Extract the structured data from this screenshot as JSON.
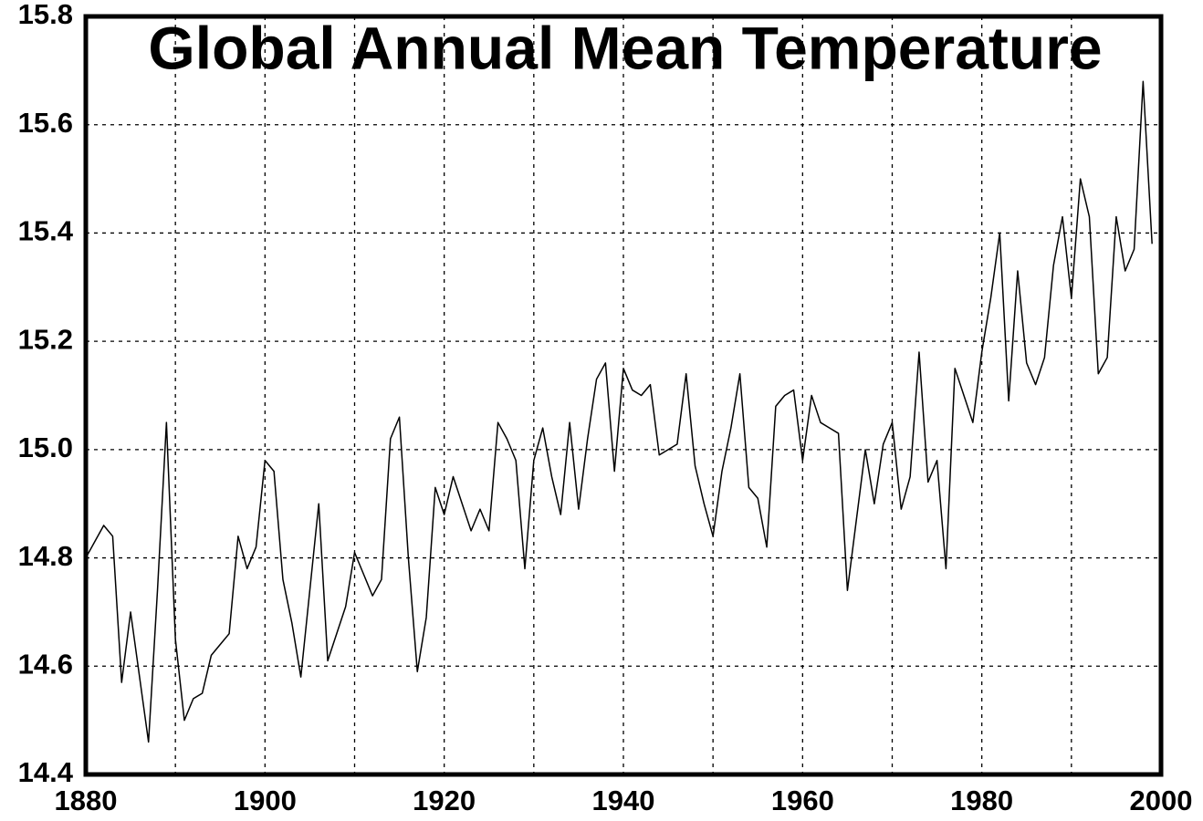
{
  "chart_data": {
    "type": "line",
    "title": "Global Annual Mean Temperature",
    "x": [
      1880,
      1881,
      1882,
      1883,
      1884,
      1885,
      1886,
      1887,
      1888,
      1889,
      1890,
      1891,
      1892,
      1893,
      1894,
      1895,
      1896,
      1897,
      1898,
      1899,
      1900,
      1901,
      1902,
      1903,
      1904,
      1905,
      1906,
      1907,
      1908,
      1909,
      1910,
      1911,
      1912,
      1913,
      1914,
      1915,
      1916,
      1917,
      1918,
      1919,
      1920,
      1921,
      1922,
      1923,
      1924,
      1925,
      1926,
      1927,
      1928,
      1929,
      1930,
      1931,
      1932,
      1933,
      1934,
      1935,
      1936,
      1937,
      1938,
      1939,
      1940,
      1941,
      1942,
      1943,
      1944,
      1945,
      1946,
      1947,
      1948,
      1949,
      1950,
      1951,
      1952,
      1953,
      1954,
      1955,
      1956,
      1957,
      1958,
      1959,
      1960,
      1961,
      1962,
      1963,
      1964,
      1965,
      1966,
      1967,
      1968,
      1969,
      1970,
      1971,
      1972,
      1973,
      1974,
      1975,
      1976,
      1977,
      1978,
      1979,
      1980,
      1981,
      1982,
      1983,
      1984,
      1985,
      1986,
      1987,
      1988,
      1989,
      1990,
      1991,
      1992,
      1993,
      1994,
      1995,
      1996,
      1997,
      1998,
      1999
    ],
    "values": [
      14.8,
      14.83,
      14.86,
      14.84,
      14.57,
      14.7,
      14.58,
      14.46,
      14.74,
      15.05,
      14.65,
      14.5,
      14.54,
      14.55,
      14.62,
      14.64,
      14.66,
      14.84,
      14.78,
      14.82,
      14.98,
      14.96,
      14.76,
      14.68,
      14.58,
      14.74,
      14.9,
      14.61,
      14.66,
      14.71,
      14.81,
      14.77,
      14.73,
      14.76,
      15.02,
      15.06,
      14.8,
      14.59,
      14.69,
      14.93,
      14.88,
      14.95,
      14.9,
      14.85,
      14.89,
      14.85,
      15.05,
      15.02,
      14.98,
      14.78,
      14.98,
      15.04,
      14.95,
      14.88,
      15.05,
      14.89,
      15.02,
      15.13,
      15.16,
      14.96,
      15.15,
      15.11,
      15.1,
      15.12,
      14.99,
      15.0,
      15.01,
      15.14,
      14.97,
      14.9,
      14.84,
      14.96,
      15.04,
      15.14,
      14.93,
      14.91,
      14.82,
      15.08,
      15.1,
      15.11,
      14.98,
      15.1,
      15.05,
      15.04,
      15.03,
      14.74,
      14.87,
      15.0,
      14.9,
      15.01,
      15.05,
      14.89,
      14.95,
      15.18,
      14.94,
      14.98,
      14.78,
      15.15,
      15.1,
      15.05,
      15.18,
      15.28,
      15.4,
      15.09,
      15.33,
      15.16,
      15.12,
      15.17,
      15.34,
      15.43,
      15.28,
      15.5,
      15.43,
      15.14,
      15.17,
      15.43,
      15.33,
      15.37,
      15.68,
      15.38
    ],
    "color": "#000000",
    "xlim": [
      1880,
      2000
    ],
    "xticks": [
      1880,
      1900,
      1920,
      1940,
      1960,
      1980,
      2000
    ],
    "xminorticks": [
      1890,
      1910,
      1930,
      1950,
      1970,
      1990
    ],
    "ylim": [
      14.4,
      15.8
    ],
    "yticks": [
      14.4,
      14.6,
      14.8,
      {
        "value": 15,
        "label": "15.0"
      },
      15.2,
      15.4,
      15.6,
      15.8
    ],
    "grid": true
  }
}
